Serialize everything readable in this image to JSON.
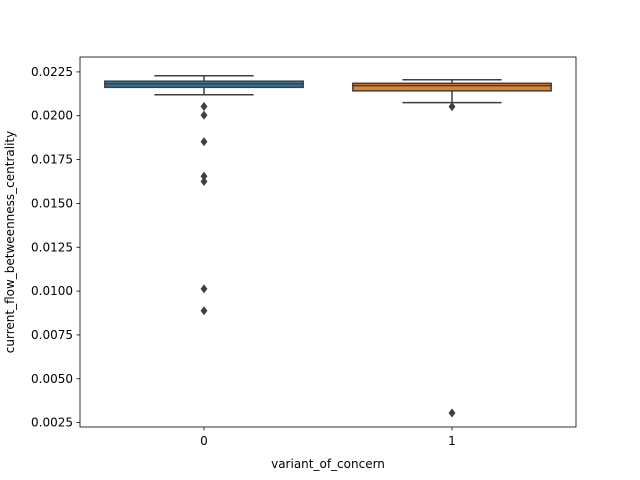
{
  "chart_data": {
    "type": "box",
    "xlabel": "variant_of_concern",
    "ylabel": "current_flow_betweenness_centrality",
    "ylim": [
      0.00225,
      0.02335
    ],
    "yticks": [
      "0.0025",
      "0.0050",
      "0.0075",
      "0.0100",
      "0.0125",
      "0.0150",
      "0.0175",
      "0.0200",
      "0.0225"
    ],
    "categories": [
      "0",
      "1"
    ],
    "grid": false,
    "series": [
      {
        "category": "0",
        "color": "#3274a1",
        "whisker_low": 0.0212,
        "q1": 0.02162,
        "median": 0.02182,
        "q3": 0.02197,
        "whisker_high": 0.02228,
        "outliers": [
          0.02053,
          0.02003,
          0.01852,
          0.01655,
          0.01625,
          0.01013,
          0.00888
        ]
      },
      {
        "category": "1",
        "color": "#e1812c",
        "whisker_low": 0.02075,
        "q1": 0.02142,
        "median": 0.02172,
        "q3": 0.02185,
        "whisker_high": 0.02205,
        "outliers": [
          0.02052,
          0.00305
        ]
      }
    ]
  }
}
